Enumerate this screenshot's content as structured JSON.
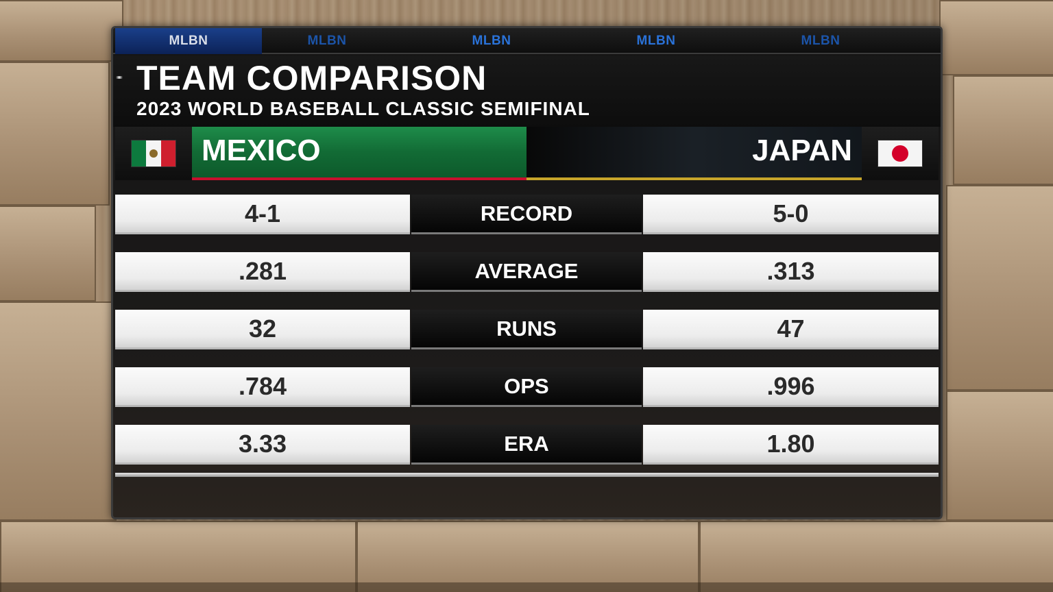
{
  "network": {
    "tabs": [
      "MLBN",
      "MLBN",
      "MLBN",
      "MLBN",
      "MLBN"
    ]
  },
  "header": {
    "title": "TEAM COMPARISON",
    "subtitle": "2023 WORLD BASEBALL CLASSIC SEMIFINAL"
  },
  "teams": {
    "left": {
      "name": "MEXICO",
      "flag": "mexico-flag-icon",
      "accent": "#1e8c4a",
      "underline": "#c8102e"
    },
    "right": {
      "name": "JAPAN",
      "flag": "japan-flag-icon",
      "accent": "#12171c",
      "underline": "#c7a52a"
    }
  },
  "stats": [
    {
      "label": "RECORD",
      "left": "4-1",
      "right": "5-0"
    },
    {
      "label": "AVERAGE",
      "left": ".281",
      "right": ".313"
    },
    {
      "label": "RUNS",
      "left": "32",
      "right": "47"
    },
    {
      "label": "OPS",
      "left": ".784",
      "right": ".996"
    },
    {
      "label": "ERA",
      "left": "3.33",
      "right": "1.80"
    }
  ]
}
